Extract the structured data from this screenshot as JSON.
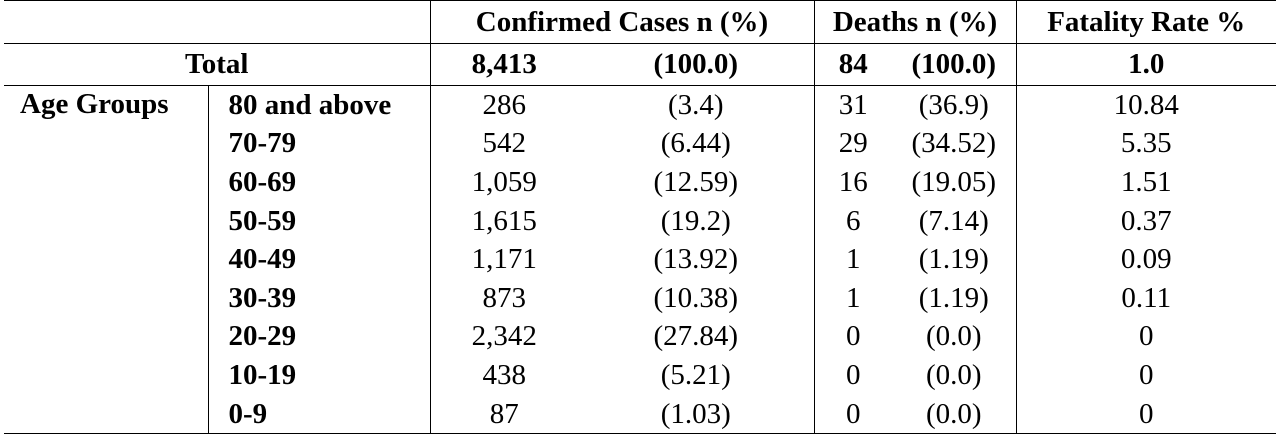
{
  "header": {
    "confirmed": "Confirmed Cases n (%)",
    "deaths": "Deaths n (%)",
    "fatality": "Fatality Rate %"
  },
  "total": {
    "label": "Total",
    "confirmed_n": "8,413",
    "confirmed_pct": "(100.0)",
    "deaths_n": "84",
    "deaths_pct": "(100.0)",
    "fatality": "1.0"
  },
  "age_groups_label": "Age Groups",
  "rows": [
    {
      "group": "80 and above",
      "confirmed_n": "286",
      "confirmed_pct": "(3.4)",
      "deaths_n": "31",
      "deaths_pct": "(36.9)",
      "fatality": "10.84"
    },
    {
      "group": "70-79",
      "confirmed_n": "542",
      "confirmed_pct": "(6.44)",
      "deaths_n": "29",
      "deaths_pct": "(34.52)",
      "fatality": "5.35"
    },
    {
      "group": "60-69",
      "confirmed_n": "1,059",
      "confirmed_pct": "(12.59)",
      "deaths_n": "16",
      "deaths_pct": "(19.05)",
      "fatality": "1.51"
    },
    {
      "group": "50-59",
      "confirmed_n": "1,615",
      "confirmed_pct": "(19.2)",
      "deaths_n": "6",
      "deaths_pct": "(7.14)",
      "fatality": "0.37"
    },
    {
      "group": "40-49",
      "confirmed_n": "1,171",
      "confirmed_pct": "(13.92)",
      "deaths_n": "1",
      "deaths_pct": "(1.19)",
      "fatality": "0.09"
    },
    {
      "group": "30-39",
      "confirmed_n": "873",
      "confirmed_pct": "(10.38)",
      "deaths_n": "1",
      "deaths_pct": "(1.19)",
      "fatality": "0.11"
    },
    {
      "group": "20-29",
      "confirmed_n": "2,342",
      "confirmed_pct": "(27.84)",
      "deaths_n": "0",
      "deaths_pct": "(0.0)",
      "fatality": "0"
    },
    {
      "group": "10-19",
      "confirmed_n": "438",
      "confirmed_pct": "(5.21)",
      "deaths_n": "0",
      "deaths_pct": "(0.0)",
      "fatality": "0"
    },
    {
      "group": "0-9",
      "confirmed_n": "87",
      "confirmed_pct": "(1.03)",
      "deaths_n": "0",
      "deaths_pct": "(0.0)",
      "fatality": "0"
    }
  ]
}
